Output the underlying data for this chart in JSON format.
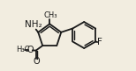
{
  "bg_color": "#f2ede0",
  "bond_color": "#1a1a1a",
  "text_color": "#1a1a1a",
  "bond_lw": 1.3,
  "font_size": 7.0,
  "small_font_size": 6.0,
  "xlim": [
    0.0,
    1.0
  ],
  "ylim": [
    0.05,
    0.85
  ]
}
